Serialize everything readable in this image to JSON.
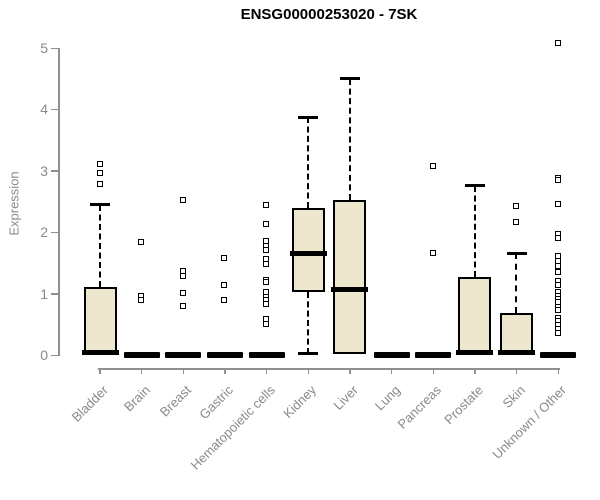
{
  "chart_data": {
    "type": "boxplot",
    "title": "ENSG00000253020 - 7SK",
    "ylabel": "Expression",
    "xlabel": "",
    "ylim": [
      0,
      5
    ],
    "y_ticks": [
      0,
      1,
      2,
      3,
      4,
      5
    ],
    "grid": false,
    "legend": false,
    "categories": [
      "Bladder",
      "Brain",
      "Breast",
      "Gastric",
      "Hematopoietic cells",
      "Kidney",
      "Liver",
      "Lung",
      "Pancreas",
      "Prostate",
      "Skin",
      "Unknown / Other"
    ],
    "series": [
      {
        "category": "Bladder",
        "whisker_low": 0,
        "q1": 0.02,
        "median": 0.04,
        "q3": 1.1,
        "whisker_high": 2.45,
        "outliers": [
          3.1,
          2.95,
          2.77
        ]
      },
      {
        "category": "Brain",
        "whisker_low": 0,
        "q1": 0,
        "median": 0,
        "q3": 0,
        "whisker_high": 0,
        "outliers": [
          1.84,
          0.95,
          0.88
        ]
      },
      {
        "category": "Breast",
        "whisker_low": 0,
        "q1": 0,
        "median": 0,
        "q3": 0,
        "whisker_high": 0,
        "outliers": [
          2.52,
          1.36,
          1.28,
          1.0,
          0.79
        ]
      },
      {
        "category": "Gastric",
        "whisker_low": 0,
        "q1": 0,
        "median": 0,
        "q3": 0,
        "whisker_high": 0,
        "outliers": [
          1.57,
          1.13,
          0.89
        ]
      },
      {
        "category": "Hematopoietic cells",
        "whisker_low": 0,
        "q1": 0,
        "median": 0,
        "q3": 0,
        "whisker_high": 0,
        "outliers": [
          2.44,
          2.13,
          1.85,
          1.76,
          1.7,
          1.55,
          1.47,
          1.22,
          1.18,
          1.02,
          0.94,
          0.88,
          0.82,
          0.58,
          0.5
        ]
      },
      {
        "category": "Kidney",
        "whisker_low": 0.02,
        "q1": 1.03,
        "median": 1.65,
        "q3": 2.4,
        "whisker_high": 3.87,
        "outliers": []
      },
      {
        "category": "Liver",
        "whisker_low": 0,
        "q1": 0.02,
        "median": 1.07,
        "q3": 2.53,
        "whisker_high": 4.5,
        "outliers": []
      },
      {
        "category": "Lung",
        "whisker_low": 0,
        "q1": 0,
        "median": 0,
        "q3": 0,
        "whisker_high": 0,
        "outliers": []
      },
      {
        "category": "Pancreas",
        "whisker_low": 0,
        "q1": 0,
        "median": 0,
        "q3": 0,
        "whisker_high": 0,
        "outliers": [
          3.07,
          1.66
        ]
      },
      {
        "category": "Prostate",
        "whisker_low": 0,
        "q1": 0.02,
        "median": 0.04,
        "q3": 1.27,
        "whisker_high": 2.76,
        "outliers": []
      },
      {
        "category": "Skin",
        "whisker_low": 0,
        "q1": 0.02,
        "median": 0.04,
        "q3": 0.69,
        "whisker_high": 1.66,
        "outliers": [
          2.42,
          2.15
        ]
      },
      {
        "category": "Unknown / Other",
        "whisker_low": 0,
        "q1": 0,
        "median": 0,
        "q3": 0,
        "whisker_high": 0,
        "outliers": [
          5.08,
          2.88,
          2.84,
          2.45,
          1.97,
          1.89,
          1.6,
          1.52,
          1.44,
          1.35,
          1.2,
          1.14,
          1.01,
          0.95,
          0.9,
          0.85,
          0.78,
          0.72,
          0.6,
          0.55,
          0.48,
          0.42,
          0.35
        ]
      }
    ],
    "colors": {
      "box_fill": "#EDE8CD",
      "box_border": "#000000",
      "median": "#000000",
      "axis": "#909090",
      "tick_label": "#8A8A8A",
      "title": "#000000",
      "background": "#FFFFFF"
    }
  }
}
